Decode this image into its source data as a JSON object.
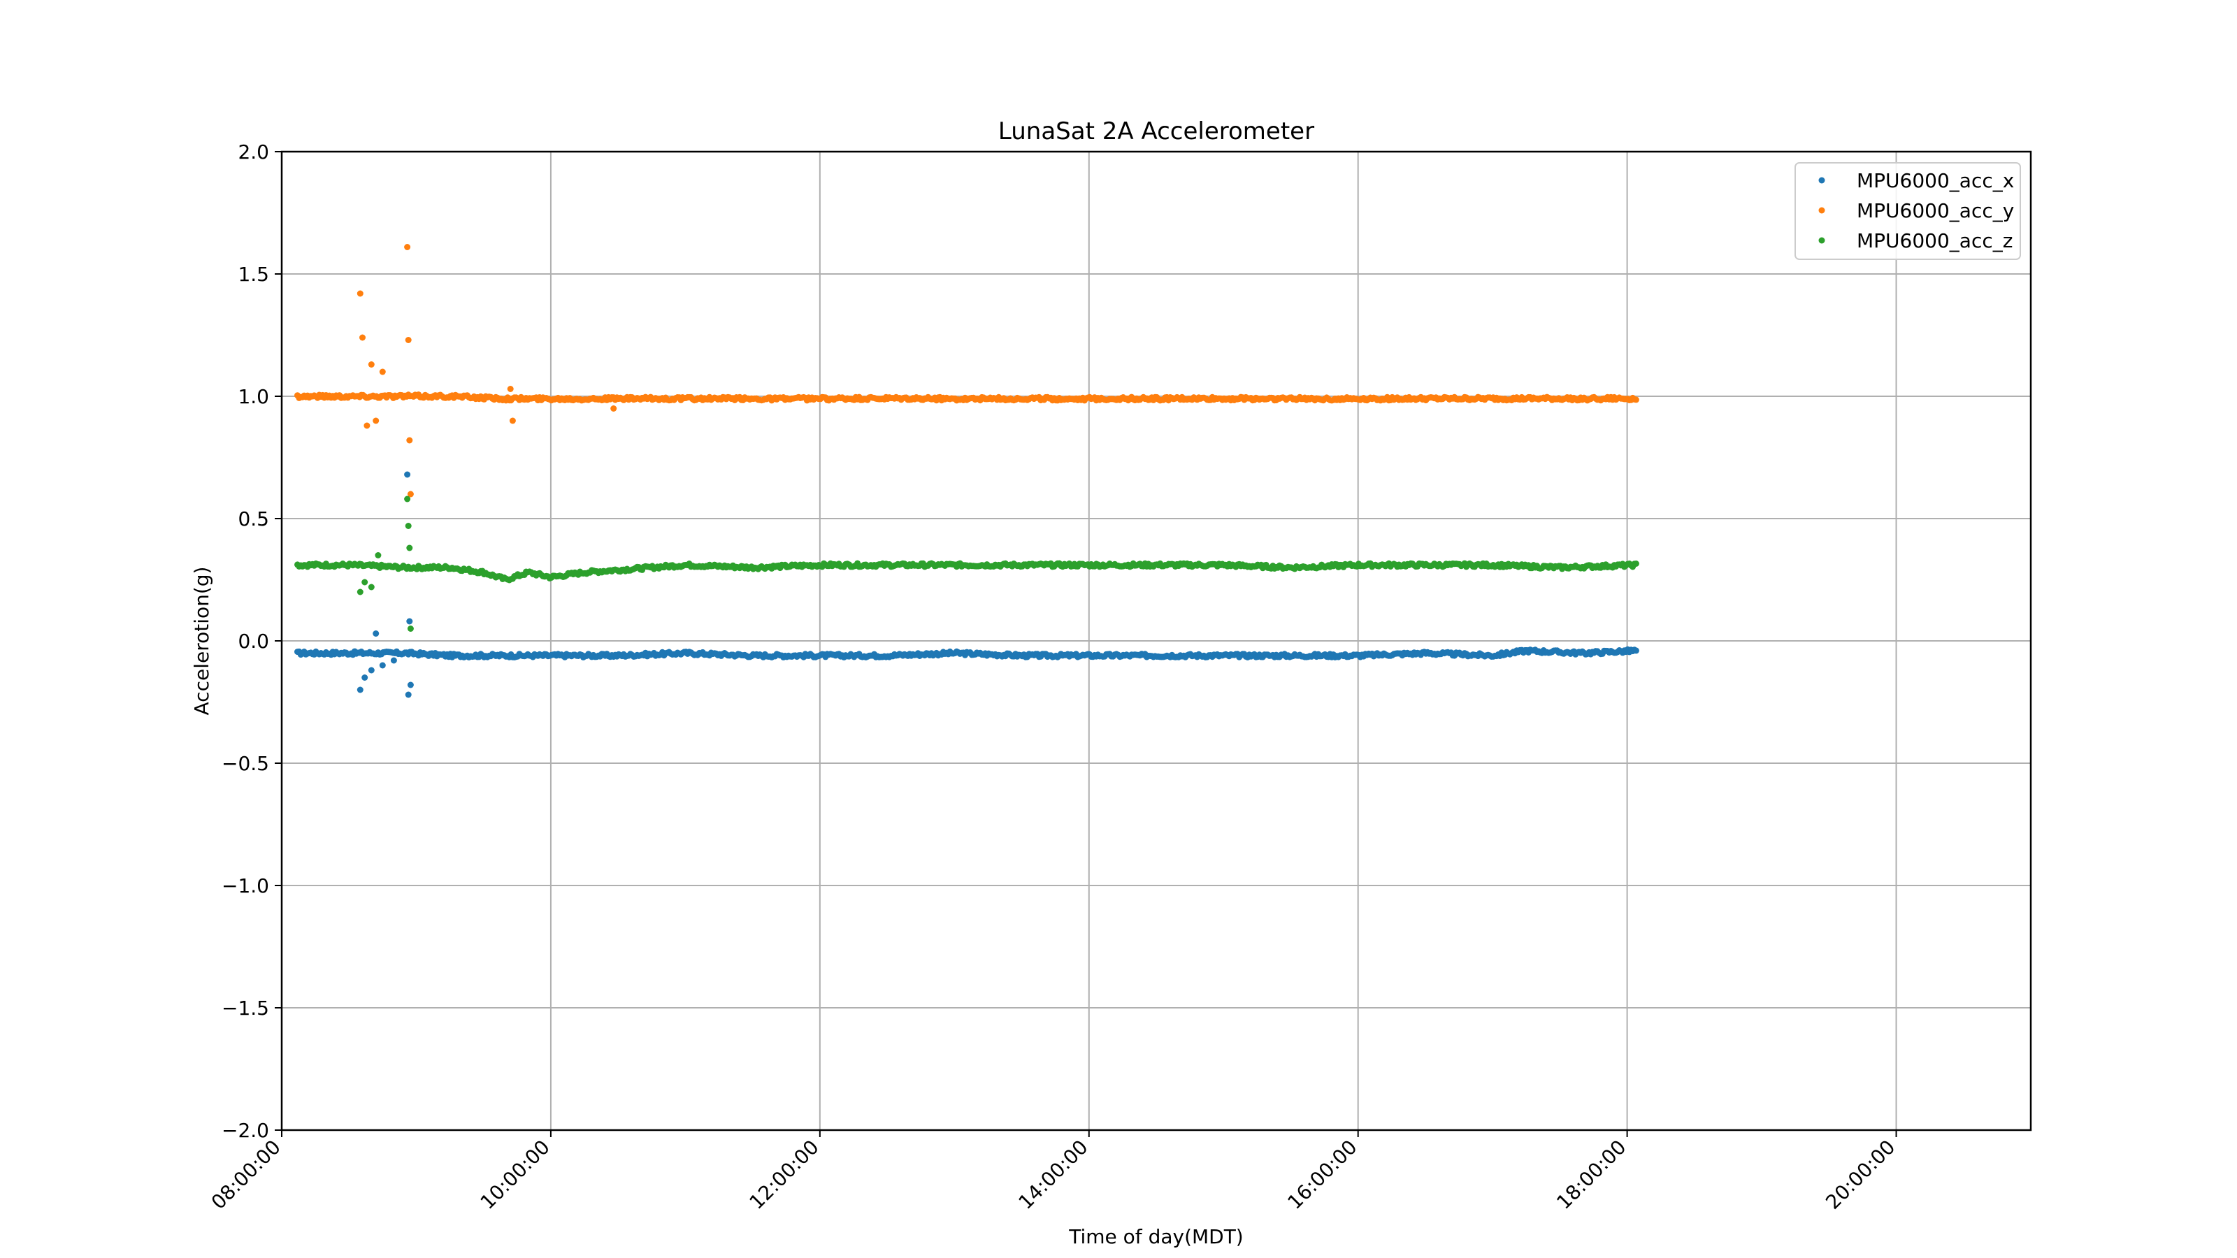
{
  "chart_data": {
    "type": "scatter",
    "title": "LunaSat 2A Accelerometer",
    "xlabel": "Time of day(MDT)",
    "ylabel": "Accelerotion(g)",
    "xlim": [
      "08:00:00",
      "21:00:00"
    ],
    "ylim": [
      -2.0,
      2.0
    ],
    "x_ticks": [
      "08:00:00",
      "10:00:00",
      "12:00:00",
      "14:00:00",
      "16:00:00",
      "18:00:00",
      "20:00:00"
    ],
    "y_ticks": [
      "2.0",
      "1.5",
      "1.0",
      "0.5",
      "0.0",
      "−0.5",
      "−1.0",
      "−1.5",
      "−2.0"
    ],
    "y_tick_values": [
      2.0,
      1.5,
      1.0,
      0.5,
      0.0,
      -0.5,
      -1.0,
      -1.5,
      -2.0
    ],
    "grid": true,
    "legend_position": "top-right",
    "series": [
      {
        "name": "MPU6000_acc_x",
        "color": "#1f77b4",
        "x": [
          "08:07:00",
          "08:30:00",
          "08:55:00",
          "09:15:00",
          "09:40:00",
          "10:00:00",
          "10:30:00",
          "11:00:00",
          "11:30:00",
          "12:00:00",
          "12:30:00",
          "13:00:00",
          "13:30:00",
          "14:00:00",
          "14:30:00",
          "15:00:00",
          "15:30:00",
          "16:00:00",
          "16:30:00",
          "17:00:00",
          "17:15:00",
          "17:40:00",
          "18:04:00"
        ],
        "y": [
          -0.05,
          -0.05,
          -0.05,
          -0.06,
          -0.06,
          -0.06,
          -0.06,
          -0.05,
          -0.06,
          -0.06,
          -0.06,
          -0.05,
          -0.06,
          -0.06,
          -0.06,
          -0.06,
          -0.06,
          -0.06,
          -0.05,
          -0.06,
          -0.04,
          -0.05,
          -0.04
        ],
        "outliers_x": [
          "08:35:00",
          "08:37:00",
          "08:40:00",
          "08:42:00",
          "08:45:00",
          "08:50:00",
          "08:56:00",
          "08:56:30",
          "08:57:00",
          "08:57:30"
        ],
        "outliers_y": [
          -0.2,
          -0.15,
          -0.12,
          0.03,
          -0.1,
          -0.08,
          0.68,
          -0.22,
          0.08,
          -0.18
        ]
      },
      {
        "name": "MPU6000_acc_y",
        "color": "#ff7f0e",
        "x": [
          "08:07:00",
          "08:30:00",
          "08:55:00",
          "09:15:00",
          "09:40:00",
          "10:00:00",
          "10:30:00",
          "11:00:00",
          "11:30:00",
          "12:00:00",
          "12:30:00",
          "13:00:00",
          "13:30:00",
          "14:00:00",
          "14:30:00",
          "15:00:00",
          "15:30:00",
          "16:00:00",
          "16:30:00",
          "17:00:00",
          "17:30:00",
          "18:04:00"
        ],
        "y": [
          1.0,
          1.0,
          1.0,
          1.0,
          0.99,
          0.99,
          0.99,
          0.99,
          0.99,
          0.99,
          0.99,
          0.99,
          0.99,
          0.99,
          0.99,
          0.99,
          0.99,
          0.99,
          0.99,
          0.99,
          0.99,
          0.99
        ],
        "outliers_x": [
          "08:35:00",
          "08:36:00",
          "08:38:00",
          "08:40:00",
          "08:42:00",
          "08:45:00",
          "08:56:00",
          "08:56:30",
          "08:57:00",
          "08:57:30",
          "09:42:00",
          "09:43:00",
          "10:28:00"
        ],
        "outliers_y": [
          1.42,
          1.24,
          0.88,
          1.13,
          0.9,
          1.1,
          1.61,
          1.23,
          0.82,
          0.6,
          1.03,
          0.9,
          0.95
        ]
      },
      {
        "name": "MPU6000_acc_z",
        "color": "#2ca02c",
        "x": [
          "08:07:00",
          "08:30:00",
          "08:55:00",
          "09:15:00",
          "09:30:00",
          "09:40:00",
          "09:50:00",
          "10:00:00",
          "10:15:00",
          "10:30:00",
          "10:45:00",
          "11:00:00",
          "11:30:00",
          "12:00:00",
          "12:30:00",
          "13:00:00",
          "13:30:00",
          "14:00:00",
          "14:30:00",
          "15:00:00",
          "15:30:00",
          "16:00:00",
          "16:30:00",
          "17:00:00",
          "17:30:00",
          "18:04:00"
        ],
        "y": [
          0.31,
          0.31,
          0.3,
          0.3,
          0.28,
          0.25,
          0.28,
          0.26,
          0.28,
          0.29,
          0.3,
          0.31,
          0.3,
          0.31,
          0.31,
          0.31,
          0.31,
          0.31,
          0.31,
          0.31,
          0.3,
          0.31,
          0.31,
          0.31,
          0.3,
          0.31
        ],
        "outliers_x": [
          "08:35:00",
          "08:37:00",
          "08:40:00",
          "08:43:00",
          "08:56:00",
          "08:56:30",
          "08:57:00",
          "08:57:30"
        ],
        "outliers_y": [
          0.2,
          0.24,
          0.22,
          0.35,
          0.58,
          0.47,
          0.38,
          0.05
        ]
      }
    ]
  }
}
